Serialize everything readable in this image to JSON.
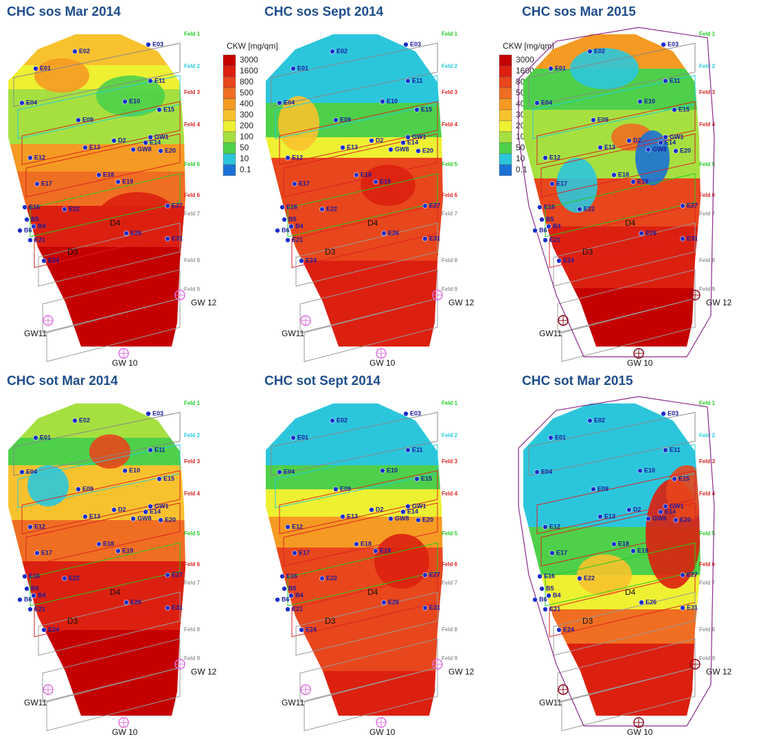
{
  "titles": [
    "CHC sos Mar 2014",
    "CHC sos Sept 2014",
    "CHC sos Mar 2015",
    "CHC sot Mar 2014",
    "CHC sot Sept 2014",
    "CHC sot Mar 2015"
  ],
  "legend": {
    "title": "CKW [mg/qm]",
    "levels": [
      {
        "label": "3000",
        "color": "#c40000"
      },
      {
        "label": "1600",
        "color": "#dc2010"
      },
      {
        "label": "800",
        "color": "#e8461c"
      },
      {
        "label": "500",
        "color": "#f06e22"
      },
      {
        "label": "400",
        "color": "#f59a22"
      },
      {
        "label": "300",
        "color": "#f8c22e"
      },
      {
        "label": "200",
        "color": "#eef032"
      },
      {
        "label": "100",
        "color": "#a6e040"
      },
      {
        "label": "50",
        "color": "#4ed04a"
      },
      {
        "label": "10",
        "color": "#2cc6dc"
      },
      {
        "label": "0.1",
        "color": "#1c72d4"
      }
    ]
  },
  "fields": [
    {
      "label": "Feld 1",
      "color": "#22cc22",
      "outline": "#888888"
    },
    {
      "label": "Feld 2",
      "color": "#22ccdd",
      "outline": "#22ccdd"
    },
    {
      "label": "Feld 3",
      "color": "#dd2222",
      "outline": "#dd2222"
    },
    {
      "label": "Feld 4",
      "color": "#dd2222",
      "outline": "#dd2222"
    },
    {
      "label": "Feld 5",
      "color": "#22cc22",
      "outline": "#22cc22"
    },
    {
      "label": "Feld 6",
      "color": "#dd2222",
      "outline": "#dd2222"
    },
    {
      "label": "Feld 7",
      "color": "#999999",
      "outline": "#999999"
    },
    {
      "label": "Feld 8",
      "color": "#999999",
      "outline": "#999999"
    },
    {
      "label": "Feld 9",
      "color": "#999999",
      "outline": "#999999"
    }
  ],
  "wells": [
    "GW 12",
    "GW11",
    "GW 10"
  ],
  "points": [
    "E01",
    "E02",
    "E03",
    "E04",
    "E09",
    "E10",
    "E11",
    "E12",
    "E13",
    "E14",
    "E15",
    "E16",
    "E17",
    "E18",
    "E19",
    "E20",
    "E21",
    "E22",
    "E24",
    "E26",
    "E27",
    "E31",
    "D2",
    "GW8",
    "GW1",
    "B4",
    "B5",
    "B6"
  ],
  "markers": [
    "D3",
    "D4"
  ]
}
